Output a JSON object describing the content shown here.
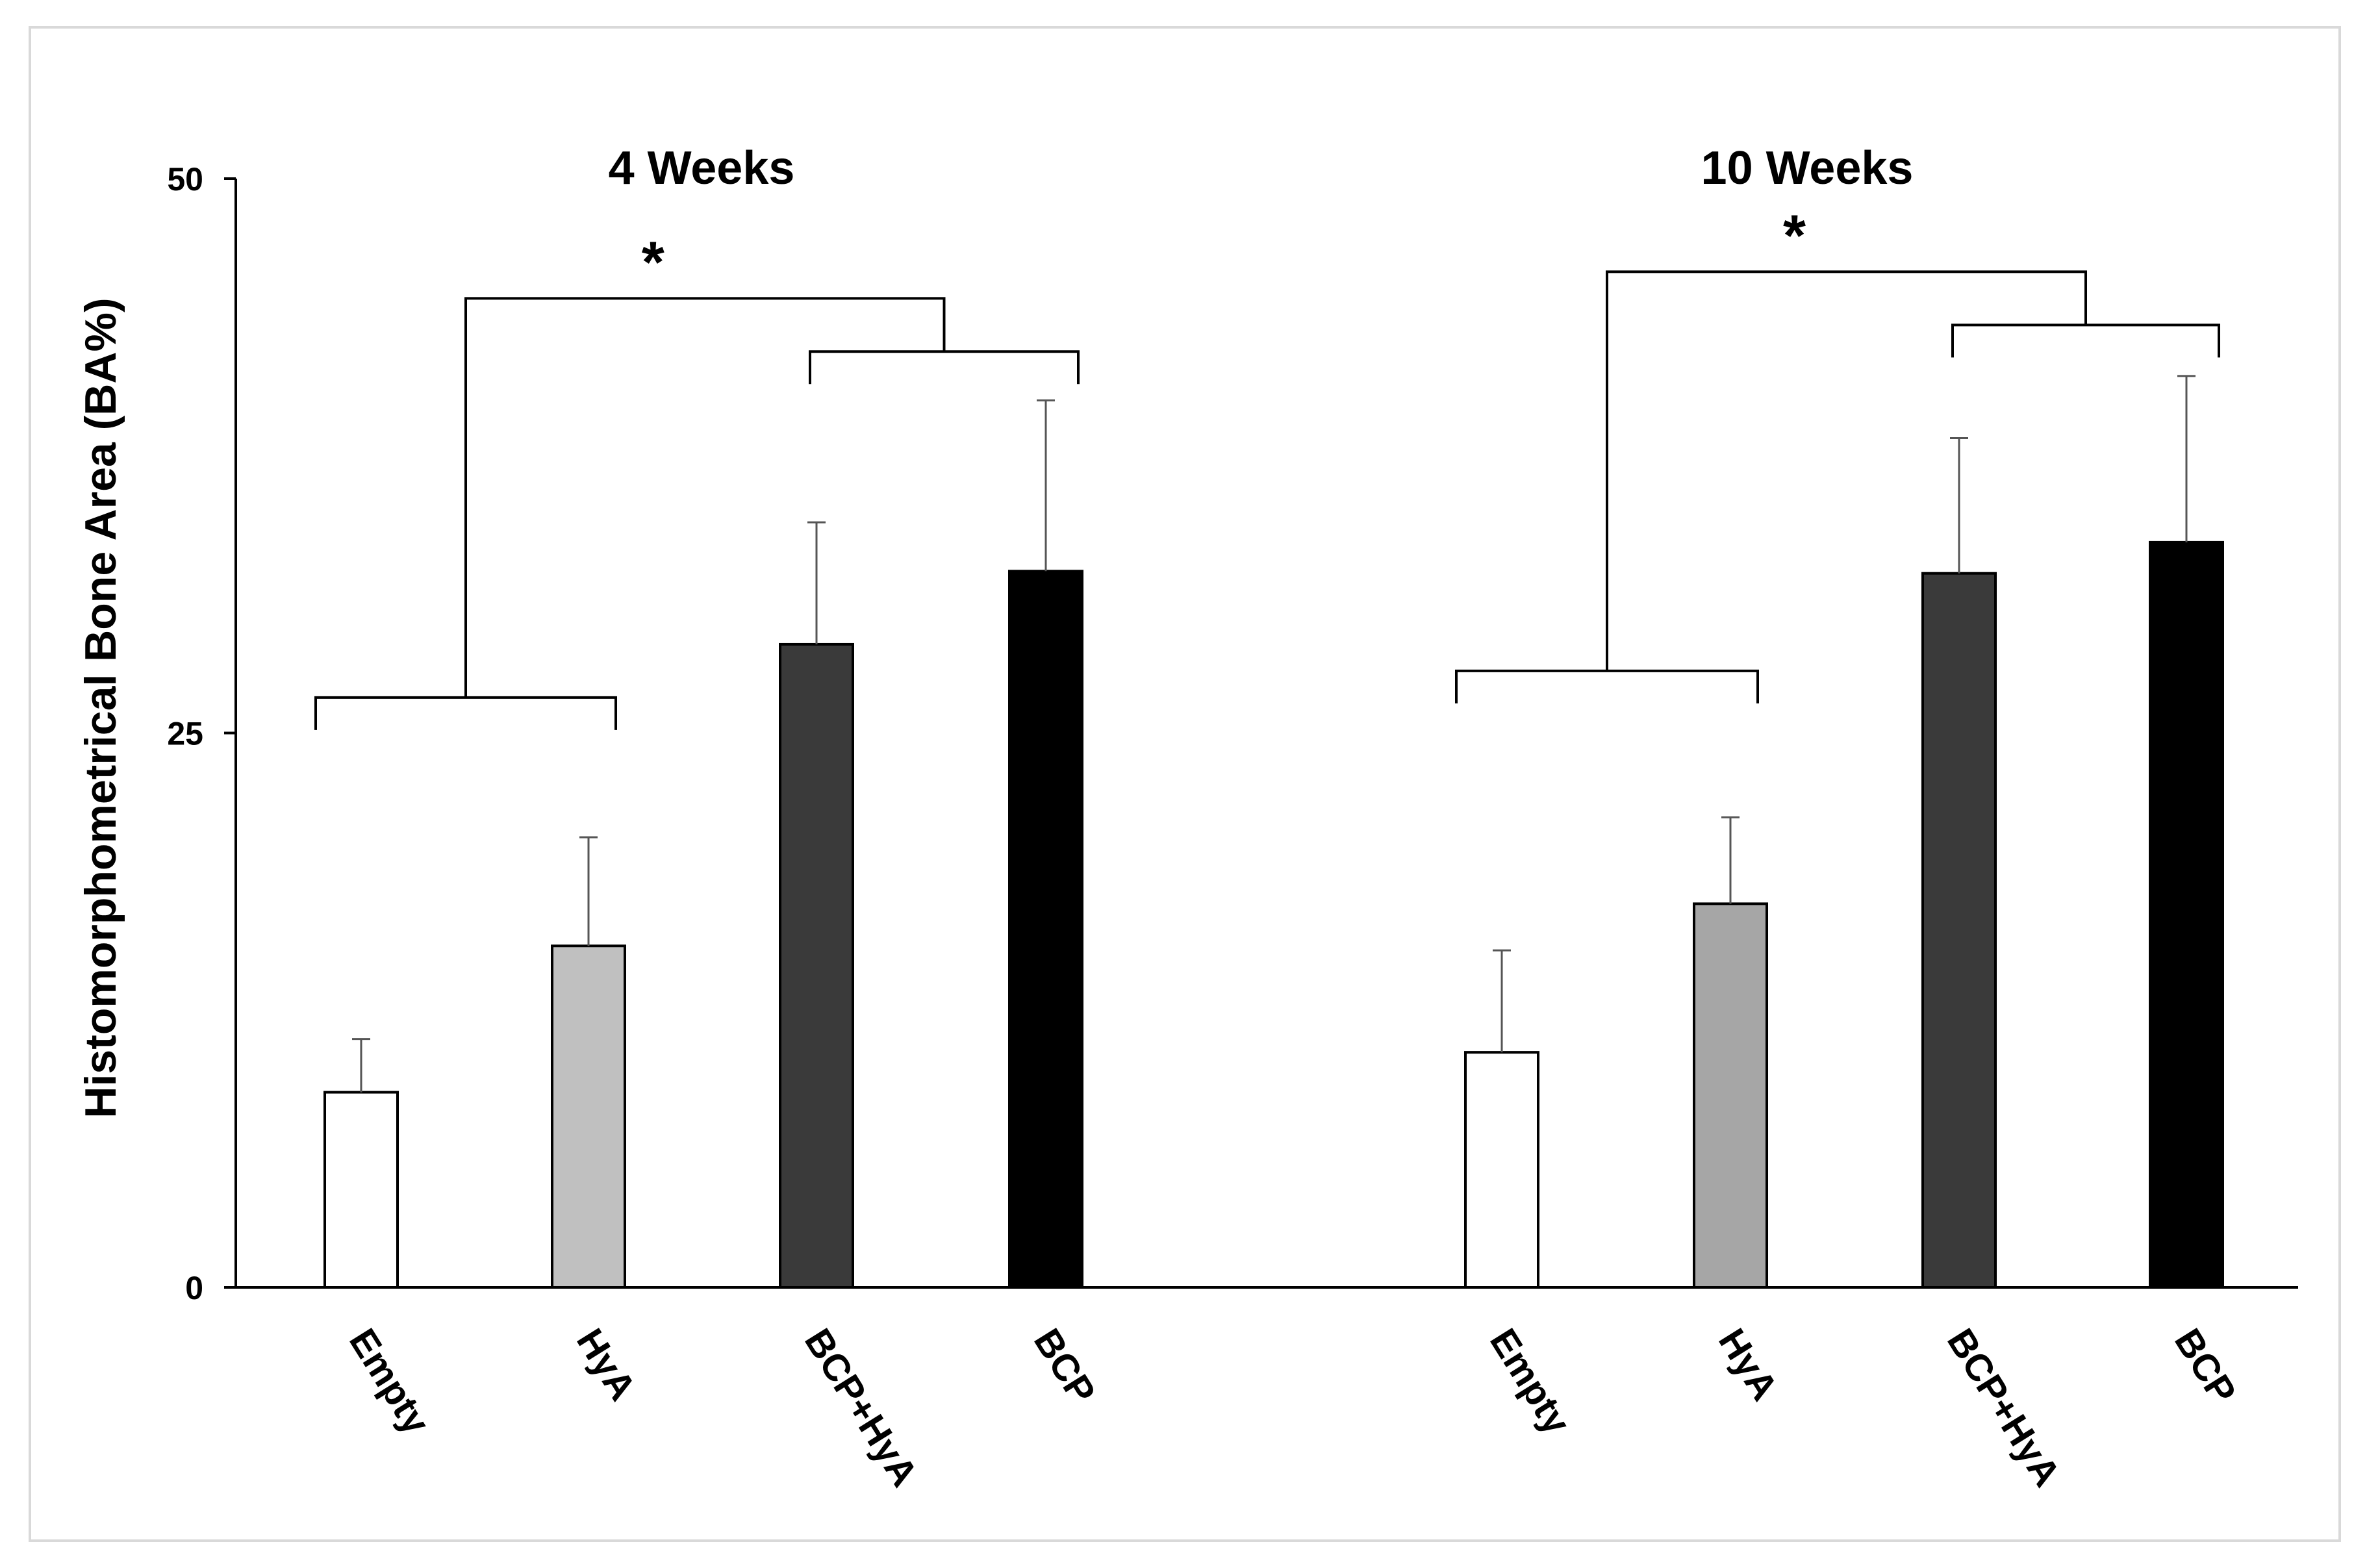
{
  "chart_data": {
    "type": "bar",
    "ylabel": "Histomorphometrical Bone Area (BA%)",
    "ylim": [
      0,
      50
    ],
    "yticks": [
      0,
      25,
      50
    ],
    "grid": false,
    "legend": "none",
    "colors": {
      "Empty": "#ffffff",
      "HyA_4": "#c0c0c0",
      "HyA_10": "#a6a6a6",
      "BCP+HyA": "#3a3a3a",
      "BCP": "#000000",
      "outline": "#000000"
    },
    "groups": [
      {
        "title": "4 Weeks",
        "bars": [
          {
            "category": "Empty",
            "value": 8.8,
            "error": 2.4,
            "color_key": "Empty"
          },
          {
            "category": "HyA",
            "value": 15.4,
            "error": 4.9,
            "color_key": "HyA_4"
          },
          {
            "category": "BCP+HyA",
            "value": 29.0,
            "error": 5.5,
            "color_key": "BCP+HyA"
          },
          {
            "category": "BCP",
            "value": 32.3,
            "error": 7.7,
            "color_key": "BCP"
          }
        ],
        "significance": {
          "label": "*",
          "left_bracket": [
            0,
            1
          ],
          "right_bracket": [
            2,
            3
          ],
          "left_y": 26.6,
          "right_y": 42.2,
          "top_y": 44.6
        }
      },
      {
        "title": "10 Weeks",
        "bars": [
          {
            "category": "Empty",
            "value": 10.6,
            "error": 4.6,
            "color_key": "Empty"
          },
          {
            "category": "HyA",
            "value": 17.3,
            "error": 3.9,
            "color_key": "HyA_10"
          },
          {
            "category": "BCP+HyA",
            "value": 32.2,
            "error": 6.1,
            "color_key": "BCP+HyA"
          },
          {
            "category": "BCP",
            "value": 33.6,
            "error": 7.5,
            "color_key": "BCP"
          }
        ],
        "significance": {
          "label": "*",
          "left_bracket": [
            0,
            1
          ],
          "right_bracket": [
            2,
            3
          ],
          "left_y": 27.8,
          "right_y": 43.4,
          "top_y": 45.8
        }
      }
    ]
  }
}
